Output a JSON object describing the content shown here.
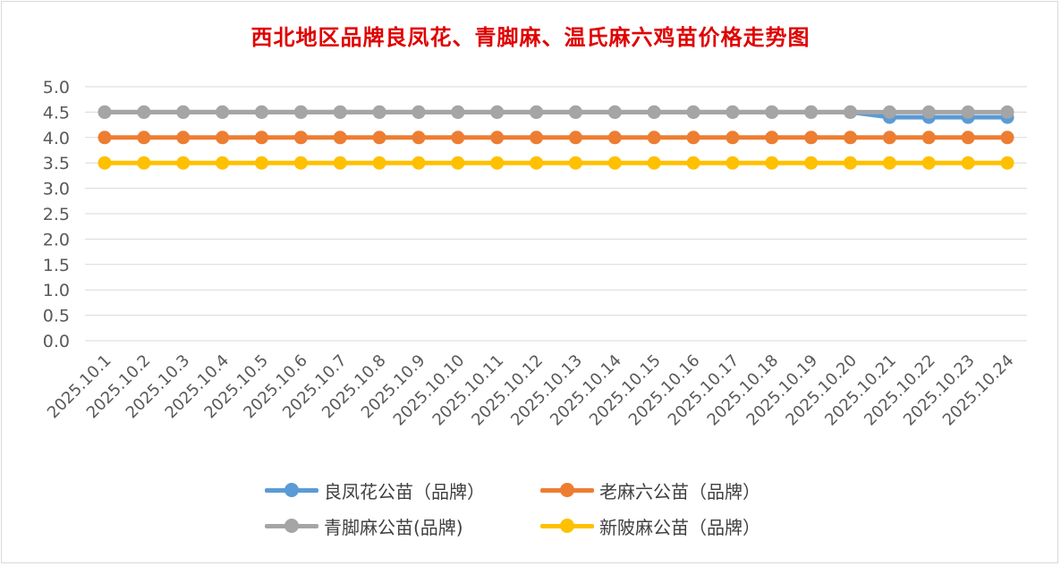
{
  "chart_data": {
    "type": "line",
    "title": "西北地区品牌良凤花、青脚麻、温氏麻六鸡苗价格走势图",
    "xlabel": "",
    "ylabel": "",
    "ylim": [
      0,
      5
    ],
    "y_ticks": [
      "0.0",
      "0.5",
      "1.0",
      "1.5",
      "2.0",
      "2.5",
      "3.0",
      "3.5",
      "4.0",
      "4.5",
      "5.0"
    ],
    "grid": true,
    "legend_position": "bottom",
    "categories": [
      "2025.10.1",
      "2025.10.2",
      "2025.10.3",
      "2025.10.4",
      "2025.10.5",
      "2025.10.6",
      "2025.10.7",
      "2025.10.8",
      "2025.10.9",
      "2025.10.10",
      "2025.10.11",
      "2025.10.12",
      "2025.10.13",
      "2025.10.14",
      "2025.10.15",
      "2025.10.16",
      "2025.10.17",
      "2025.10.18",
      "2025.10.19",
      "2025.10.20",
      "2025.10.21",
      "2025.10.22",
      "2025.10.23",
      "2025.10.24"
    ],
    "series": [
      {
        "name": "良凤花公苗（品牌）",
        "color": "#5b9bd5",
        "values": [
          4.5,
          4.5,
          4.5,
          4.5,
          4.5,
          4.5,
          4.5,
          4.5,
          4.5,
          4.5,
          4.5,
          4.5,
          4.5,
          4.5,
          4.5,
          4.5,
          4.5,
          4.5,
          4.5,
          4.5,
          4.4,
          4.4,
          4.4,
          4.4
        ]
      },
      {
        "name": "老麻六公苗（品牌）",
        "color": "#ed7d31",
        "values": [
          4.0,
          4.0,
          4.0,
          4.0,
          4.0,
          4.0,
          4.0,
          4.0,
          4.0,
          4.0,
          4.0,
          4.0,
          4.0,
          4.0,
          4.0,
          4.0,
          4.0,
          4.0,
          4.0,
          4.0,
          4.0,
          4.0,
          4.0,
          4.0
        ]
      },
      {
        "name": "青脚麻公苗(品牌)",
        "color": "#a5a5a5",
        "values": [
          4.5,
          4.5,
          4.5,
          4.5,
          4.5,
          4.5,
          4.5,
          4.5,
          4.5,
          4.5,
          4.5,
          4.5,
          4.5,
          4.5,
          4.5,
          4.5,
          4.5,
          4.5,
          4.5,
          4.5,
          4.5,
          4.5,
          4.5,
          4.5
        ]
      },
      {
        "name": "新陂麻公苗（品牌）",
        "color": "#ffc000",
        "values": [
          3.5,
          3.5,
          3.5,
          3.5,
          3.5,
          3.5,
          3.5,
          3.5,
          3.5,
          3.5,
          3.5,
          3.5,
          3.5,
          3.5,
          3.5,
          3.5,
          3.5,
          3.5,
          3.5,
          3.5,
          3.5,
          3.5,
          3.5,
          3.5
        ]
      }
    ]
  }
}
